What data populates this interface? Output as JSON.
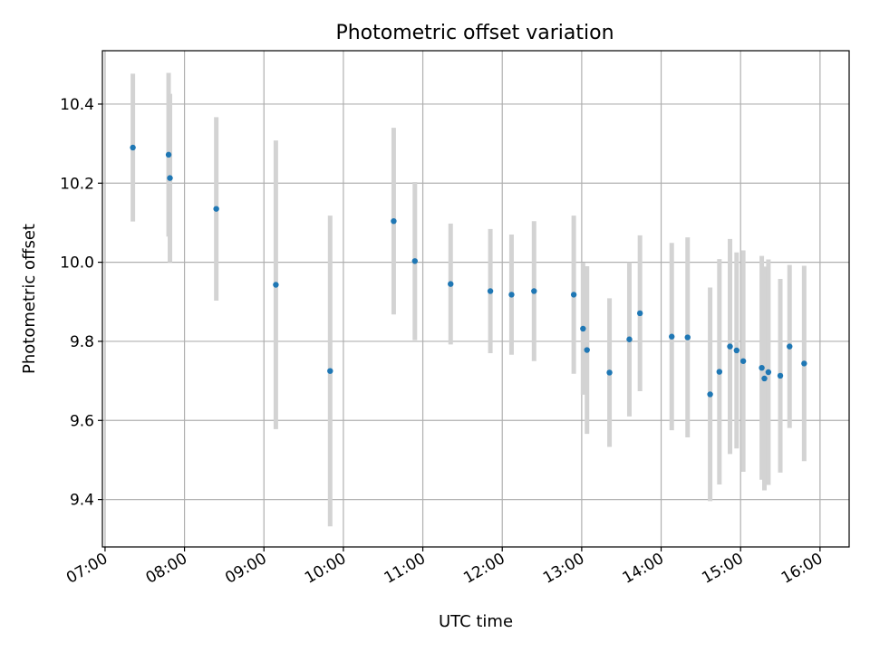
{
  "chart_data": {
    "type": "scatter",
    "title": "Photometric offset variation",
    "xlabel": "UTC time",
    "ylabel": "Photometric offset",
    "xlim": [
      "06:58",
      "16:22"
    ],
    "ylim": [
      9.28,
      10.535
    ],
    "grid": true,
    "x_ticks": [
      "07:00",
      "08:00",
      "09:00",
      "10:00",
      "11:00",
      "12:00",
      "13:00",
      "14:00",
      "15:00",
      "16:00"
    ],
    "y_ticks": [
      9.4,
      9.6,
      9.8,
      10.0,
      10.2,
      10.4
    ],
    "colors": {
      "point": "#1f77b4",
      "errorbar": "#d3d3d3",
      "grid": "#b0b0b0"
    },
    "points": [
      {
        "x": "07:21",
        "y": 10.29,
        "err": 0.187
      },
      {
        "x": "07:48",
        "y": 10.272,
        "err": 0.207
      },
      {
        "x": "07:49",
        "y": 10.213,
        "err": 0.213
      },
      {
        "x": "08:24",
        "y": 10.135,
        "err": 0.232
      },
      {
        "x": "09:09",
        "y": 9.943,
        "err": 0.365
      },
      {
        "x": "09:50",
        "y": 9.725,
        "err": 0.393
      },
      {
        "x": "10:38",
        "y": 10.104,
        "err": 0.236
      },
      {
        "x": "10:54",
        "y": 10.003,
        "err": 0.2
      },
      {
        "x": "11:21",
        "y": 9.945,
        "err": 0.153
      },
      {
        "x": "11:51",
        "y": 9.927,
        "err": 0.157
      },
      {
        "x": "12:07",
        "y": 9.918,
        "err": 0.152
      },
      {
        "x": "12:24",
        "y": 9.927,
        "err": 0.177
      },
      {
        "x": "12:54",
        "y": 9.918,
        "err": 0.2
      },
      {
        "x": "13:01",
        "y": 9.832,
        "err": 0.167
      },
      {
        "x": "13:04",
        "y": 9.778,
        "err": 0.212
      },
      {
        "x": "13:21",
        "y": 9.721,
        "err": 0.188
      },
      {
        "x": "13:36",
        "y": 9.805,
        "err": 0.195
      },
      {
        "x": "13:44",
        "y": 9.871,
        "err": 0.197
      },
      {
        "x": "14:08",
        "y": 9.812,
        "err": 0.237
      },
      {
        "x": "14:20",
        "y": 9.81,
        "err": 0.253
      },
      {
        "x": "14:37",
        "y": 9.666,
        "err": 0.27
      },
      {
        "x": "14:44",
        "y": 9.723,
        "err": 0.285
      },
      {
        "x": "14:52",
        "y": 9.787,
        "err": 0.272
      },
      {
        "x": "14:57",
        "y": 9.777,
        "err": 0.248
      },
      {
        "x": "15:02",
        "y": 9.75,
        "err": 0.28
      },
      {
        "x": "15:16",
        "y": 9.733,
        "err": 0.283
      },
      {
        "x": "15:18",
        "y": 9.706,
        "err": 0.283
      },
      {
        "x": "15:21",
        "y": 9.722,
        "err": 0.285
      },
      {
        "x": "15:30",
        "y": 9.713,
        "err": 0.245
      },
      {
        "x": "15:37",
        "y": 9.787,
        "err": 0.206
      },
      {
        "x": "15:48",
        "y": 9.744,
        "err": 0.247
      }
    ]
  }
}
